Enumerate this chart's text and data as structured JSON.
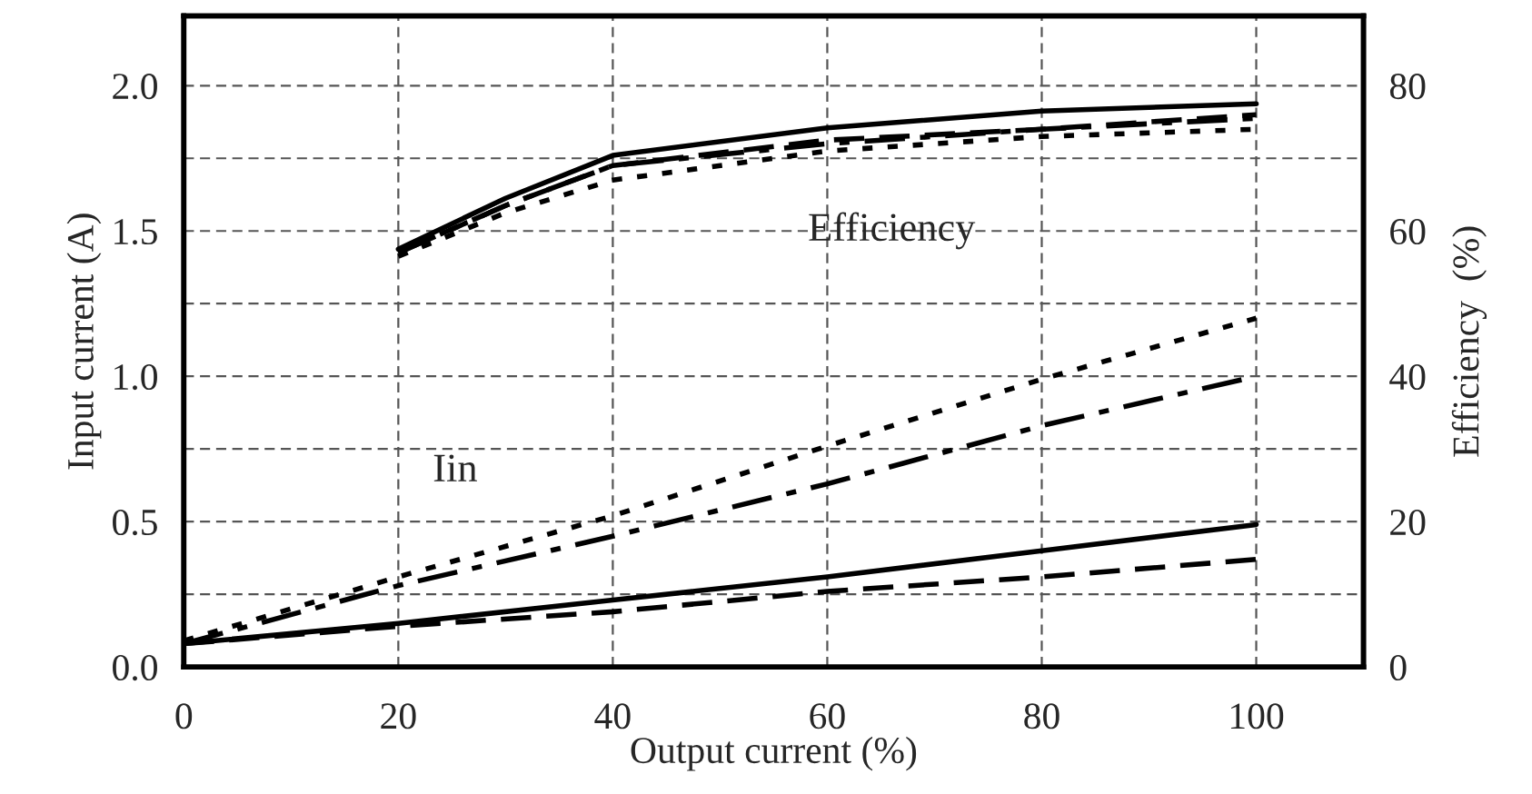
{
  "chart_data": {
    "type": "line",
    "xlabel": "Output current (%)",
    "ylabel": "Input current (A)",
    "y2label": "Efficiency  (%)",
    "xlim": [
      0,
      110
    ],
    "xticks": [
      0,
      20,
      40,
      60,
      80,
      100
    ],
    "ylim": [
      0,
      2.24
    ],
    "yticks": [
      {
        "value": 0,
        "label": "0.0"
      },
      {
        "value": 0.25,
        "label": null
      },
      {
        "value": 0.5,
        "label": "0.5"
      },
      {
        "value": 0.75,
        "label": null
      },
      {
        "value": 1.0,
        "label": "1.0"
      },
      {
        "value": 1.25,
        "label": null
      },
      {
        "value": 1.5,
        "label": "1.5"
      },
      {
        "value": 1.75,
        "label": null
      },
      {
        "value": 2.0,
        "label": "2.0"
      }
    ],
    "y2lim": [
      0,
      89.6
    ],
    "y2ticks": [
      0,
      20,
      40,
      60,
      80
    ],
    "grid": true,
    "legend": false,
    "marker": "none",
    "annotations": [
      "Efficiency",
      "Iin"
    ],
    "series": [
      {
        "color": "#000000",
        "line_style": "solid",
        "x": [
          0,
          20,
          40,
          60,
          80,
          100
        ],
        "values": [
          0.08,
          0.15,
          0.23,
          0.31,
          0.4,
          0.49
        ]
      },
      {
        "color": "#000000",
        "line_style": "dashed",
        "x": [
          0,
          20,
          40,
          60,
          80,
          100
        ],
        "values": [
          0.08,
          0.14,
          0.19,
          0.26,
          0.31,
          0.37
        ]
      },
      {
        "color": "#000000",
        "line_style": "dotted",
        "x": [
          0,
          20,
          40,
          60,
          80,
          100
        ],
        "values": [
          0.09,
          0.31,
          0.52,
          0.76,
          0.99,
          1.2
        ]
      },
      {
        "color": "#000000",
        "line_style": "dashdot",
        "x": [
          0,
          20,
          40,
          60,
          80,
          100
        ],
        "values": [
          0.08,
          0.28,
          0.45,
          0.63,
          0.83,
          1.0
        ]
      },
      {
        "color": "#000000",
        "line_style": "solid",
        "axis": "y2",
        "x": [
          20,
          30,
          40,
          60,
          80,
          100
        ],
        "values": [
          57.5,
          64.5,
          70.4,
          74.2,
          76.5,
          77.5
        ]
      },
      {
        "color": "#000000",
        "line_style": "dashed",
        "axis": "y2",
        "x": [
          20,
          30,
          40,
          60,
          80,
          100
        ],
        "values": [
          57,
          63.5,
          69,
          72.5,
          74,
          76
        ]
      },
      {
        "color": "#000000",
        "line_style": "dotted",
        "axis": "y2",
        "x": [
          20,
          30,
          40,
          60,
          80,
          100
        ],
        "values": [
          56.5,
          62.5,
          67,
          71,
          73,
          74
        ]
      },
      {
        "color": "#000000",
        "line_style": "dashdot",
        "axis": "y2",
        "x": [
          20,
          30,
          40,
          60,
          80,
          100
        ],
        "values": [
          57,
          63.5,
          69,
          72,
          74,
          75.5
        ]
      }
    ]
  }
}
